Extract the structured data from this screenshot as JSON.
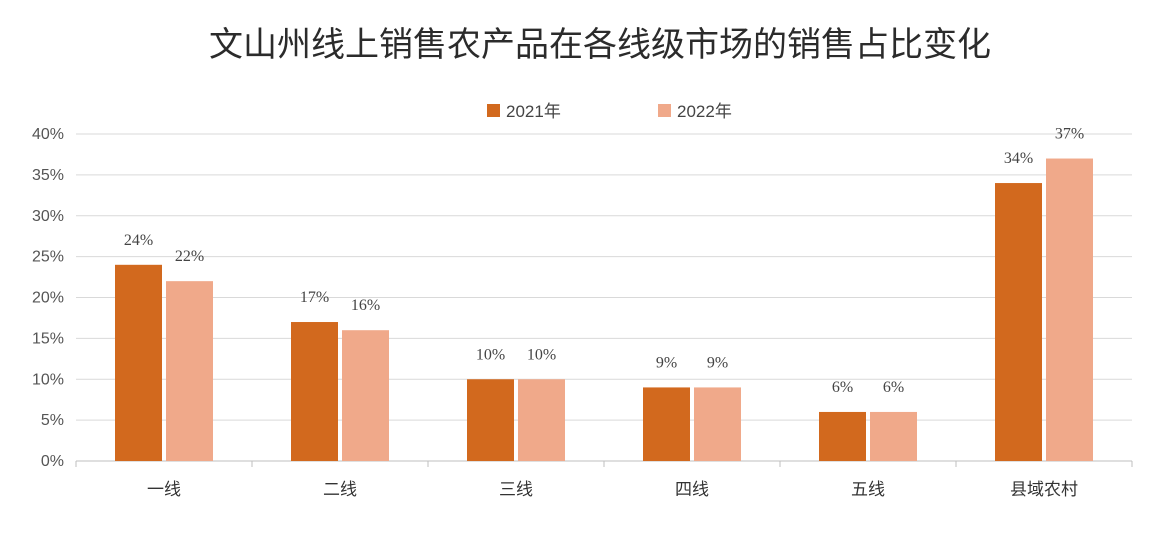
{
  "chart_data": {
    "type": "bar",
    "title": "文山州线上销售农产品在各线级市场的销售占比变化",
    "categories": [
      "一线",
      "二线",
      "三线",
      "四线",
      "五线",
      "县域农村"
    ],
    "series": [
      {
        "name": "2021年",
        "color": "#D2691E",
        "values": [
          24,
          17,
          10,
          9,
          6,
          34
        ]
      },
      {
        "name": "2022年",
        "color": "#F0A98A",
        "values": [
          22,
          16,
          10,
          9,
          6,
          37
        ]
      }
    ],
    "data_labels": [
      [
        "24%",
        "17%",
        "10%",
        "9%",
        "6%",
        "34%"
      ],
      [
        "22%",
        "16%",
        "10%",
        "9%",
        "6%",
        "37%"
      ]
    ],
    "ylim": [
      0,
      40
    ],
    "y_ticks": [
      "0%",
      "5%",
      "10%",
      "15%",
      "20%",
      "25%",
      "30%",
      "35%",
      "40%"
    ],
    "grid": true,
    "legend_position": "top"
  }
}
